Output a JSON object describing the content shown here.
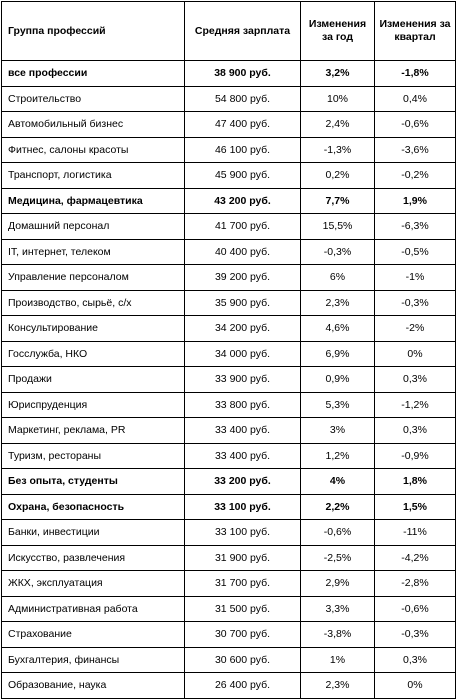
{
  "headers": [
    "Группа профессий",
    "Средняя зарплата",
    "Изменения за год",
    "Изменения за квартал"
  ],
  "rows": [
    {
      "group": "все профессии",
      "salary": "38 900 руб.",
      "year": "3,2%",
      "quarter": "-1,8%",
      "bold": true
    },
    {
      "group": "Строительство",
      "salary": "54 800 руб.",
      "year": "10%",
      "quarter": "0,4%",
      "bold": false
    },
    {
      "group": "Автомобильный бизнес",
      "salary": "47 400 руб.",
      "year": "2,4%",
      "quarter": "-0,6%",
      "bold": false
    },
    {
      "group": "Фитнес, салоны красоты",
      "salary": "46 100 руб.",
      "year": "-1,3%",
      "quarter": "-3,6%",
      "bold": false
    },
    {
      "group": "Транспорт, логистика",
      "salary": "45 900 руб.",
      "year": "0,2%",
      "quarter": "-0,2%",
      "bold": false
    },
    {
      "group": "Медицина, фармацевтика",
      "salary": "43 200 руб.",
      "year": "7,7%",
      "quarter": "1,9%",
      "bold": true
    },
    {
      "group": "Домашний персонал",
      "salary": "41 700 руб.",
      "year": "15,5%",
      "quarter": "-6,3%",
      "bold": false
    },
    {
      "group": "IT, интернет, телеком",
      "salary": "40 400 руб.",
      "year": "-0,3%",
      "quarter": "-0,5%",
      "bold": false
    },
    {
      "group": "Управление персоналом",
      "salary": "39 200 руб.",
      "year": "6%",
      "quarter": "-1%",
      "bold": false
    },
    {
      "group": "Производство, сырьё, с/х",
      "salary": "35 900 руб.",
      "year": "2,3%",
      "quarter": "-0,3%",
      "bold": false
    },
    {
      "group": "Консультирование",
      "salary": "34 200 руб.",
      "year": "4,6%",
      "quarter": "-2%",
      "bold": false
    },
    {
      "group": "Госслужба, НКО",
      "salary": "34 000 руб.",
      "year": "6,9%",
      "quarter": "0%",
      "bold": false
    },
    {
      "group": "Продажи",
      "salary": "33 900 руб.",
      "year": "0,9%",
      "quarter": "0,3%",
      "bold": false
    },
    {
      "group": "Юриспруденция",
      "salary": "33 800 руб.",
      "year": "5,3%",
      "quarter": "-1,2%",
      "bold": false
    },
    {
      "group": "Маркетинг, реклама, PR",
      "salary": "33 400 руб.",
      "year": "3%",
      "quarter": "0,3%",
      "bold": false
    },
    {
      "group": "Туризм, рестораны",
      "salary": "33 400 руб.",
      "year": "1,2%",
      "quarter": "-0,9%",
      "bold": false
    },
    {
      "group": "Без опыта, студенты",
      "salary": "33 200 руб.",
      "year": "4%",
      "quarter": "1,8%",
      "bold": true
    },
    {
      "group": "Охрана, безопасность",
      "salary": "33 100 руб.",
      "year": "2,2%",
      "quarter": "1,5%",
      "bold": true
    },
    {
      "group": "Банки, инвестиции",
      "salary": "33 100 руб.",
      "year": "-0,6%",
      "quarter": "-11%",
      "bold": false
    },
    {
      "group": "Искусство, развлечения",
      "salary": "31 900 руб.",
      "year": "-2,5%",
      "quarter": "-4,2%",
      "bold": false
    },
    {
      "group": "ЖКХ, эксплуатация",
      "salary": "31 700 руб.",
      "year": "2,9%",
      "quarter": "-2,8%",
      "bold": false
    },
    {
      "group": "Административная работа",
      "salary": "31 500 руб.",
      "year": "3,3%",
      "quarter": "-0,6%",
      "bold": false
    },
    {
      "group": "Страхование",
      "salary": "30 700 руб.",
      "year": "-3,8%",
      "quarter": "-0,3%",
      "bold": false
    },
    {
      "group": "Бухгалтерия, финансы",
      "salary": "30 600 руб.",
      "year": "1%",
      "quarter": "0,3%",
      "bold": false
    },
    {
      "group": "Образование, наука",
      "salary": "26 400 руб.",
      "year": "2,3%",
      "quarter": "0%",
      "bold": false
    }
  ]
}
